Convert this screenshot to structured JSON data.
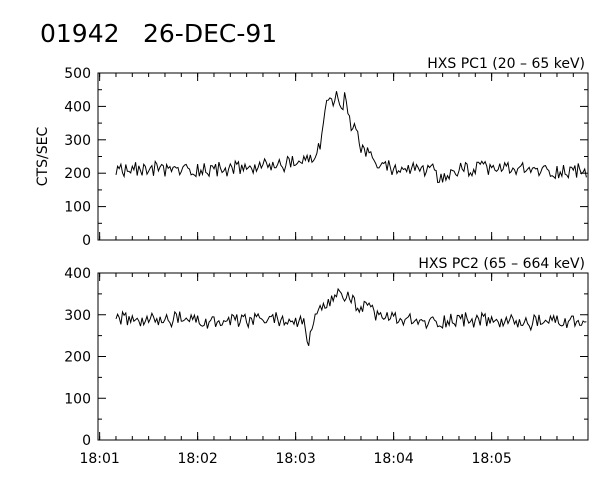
{
  "header": {
    "event_id": "01942",
    "date": "26-DEC-91"
  },
  "colors": {
    "foreground": "#000000",
    "background": "#ffffff"
  },
  "chart_data": [
    {
      "type": "line",
      "title": "HXS PC1 (20 – 65 keV)",
      "ylabel": "CTS/SEC",
      "xlabel": "",
      "ylim": [
        0,
        500
      ],
      "yticks": [
        0,
        100,
        200,
        300,
        400,
        500
      ],
      "xlim": [
        "18:00:59",
        "18:05:59"
      ],
      "xticks": [
        "18:01",
        "18:02",
        "18:03",
        "18:04",
        "18:05"
      ],
      "show_x_tick_labels": false,
      "series": [
        {
          "x": [
            "18:01:10",
            "18:01:30",
            "18:01:50",
            "18:02:10",
            "18:02:30",
            "18:02:50",
            "18:03:00",
            "18:03:10",
            "18:03:15",
            "18:03:18",
            "18:03:20",
            "18:03:23",
            "18:03:25",
            "18:03:28",
            "18:03:30",
            "18:03:33",
            "18:03:36",
            "18:03:40",
            "18:03:45",
            "18:03:50",
            "18:04:00",
            "18:04:20",
            "18:04:25",
            "18:04:27",
            "18:04:40",
            "18:05:00",
            "18:05:20",
            "18:05:40",
            "18:05:58"
          ],
          "values": [
            205,
            215,
            210,
            212,
            215,
            225,
            230,
            240,
            290,
            370,
            430,
            410,
            440,
            380,
            420,
            350,
            330,
            280,
            250,
            225,
            215,
            210,
            205,
            170,
            210,
            215,
            210,
            205,
            210
          ]
        }
      ]
    },
    {
      "type": "line",
      "title": "HXS PC2 (65 – 664 keV)",
      "ylabel": "",
      "xlabel": "",
      "ylim": [
        0,
        400
      ],
      "yticks": [
        0,
        100,
        200,
        300,
        400
      ],
      "xlim": [
        "18:00:59",
        "18:05:59"
      ],
      "xticks": [
        "18:01",
        "18:02",
        "18:03",
        "18:04",
        "18:05"
      ],
      "show_x_tick_labels": true,
      "series": [
        {
          "x": [
            "18:01:10",
            "18:01:30",
            "18:01:50",
            "18:02:10",
            "18:02:30",
            "18:02:50",
            "18:03:05",
            "18:03:08",
            "18:03:10",
            "18:03:15",
            "18:03:20",
            "18:03:25",
            "18:03:30",
            "18:03:35",
            "18:03:40",
            "18:03:50",
            "18:04:00",
            "18:04:10",
            "18:04:20",
            "18:04:40",
            "18:05:00",
            "18:05:20",
            "18:05:40",
            "18:05:58"
          ],
          "values": [
            290,
            285,
            290,
            280,
            285,
            290,
            280,
            220,
            280,
            305,
            320,
            350,
            345,
            330,
            320,
            300,
            290,
            285,
            280,
            290,
            285,
            280,
            285,
            280
          ]
        }
      ]
    }
  ]
}
